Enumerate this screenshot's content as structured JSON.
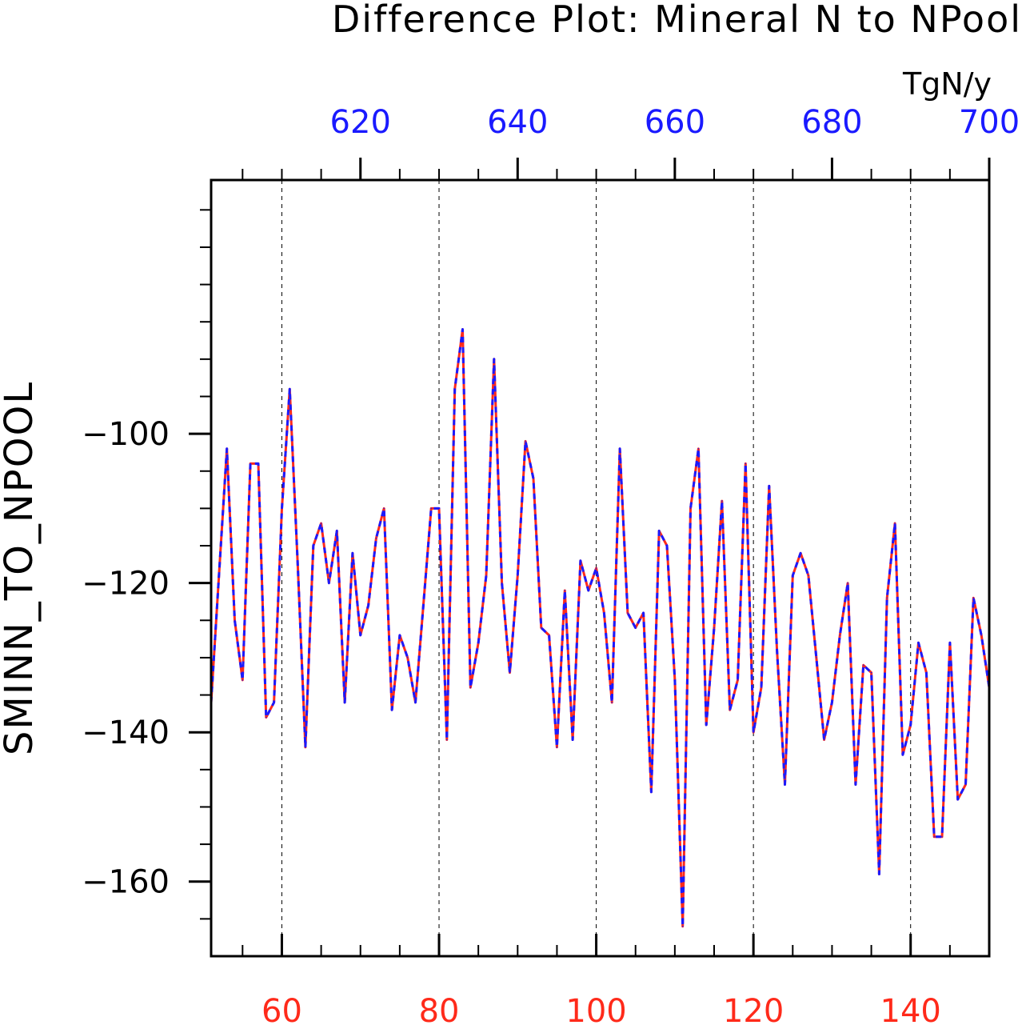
{
  "colors": {
    "primary_series": "#ff2a1a",
    "secondary_series": "#1a1aff",
    "bottom_axis_text": "#ff2a1a",
    "top_axis_text": "#1a1aff",
    "frame": "#000000"
  },
  "chart_data": {
    "type": "line",
    "title": "Difference Plot: Mineral N to NPool",
    "units": "TgN/y",
    "ylabel": "SMINN_TO_NPOOL",
    "xlabel_bottom": "",
    "xlabel_top": "",
    "ylim": [
      -170,
      -66
    ],
    "xlim_bottom": [
      51,
      150
    ],
    "xlim_top": [
      601,
      700
    ],
    "xticks_bottom": [
      60,
      80,
      100,
      120,
      140
    ],
    "xticks_top": [
      620,
      640,
      660,
      680,
      700
    ],
    "yticks": [
      -160,
      -140,
      -120,
      -100
    ],
    "grid": "vertical dashed at major bottom ticks",
    "legend": "none",
    "x": [
      51,
      52,
      53,
      54,
      55,
      56,
      57,
      58,
      59,
      60,
      61,
      62,
      63,
      64,
      65,
      66,
      67,
      68,
      69,
      70,
      71,
      72,
      73,
      74,
      75,
      76,
      77,
      78,
      79,
      80,
      81,
      82,
      83,
      84,
      85,
      86,
      87,
      88,
      89,
      90,
      91,
      92,
      93,
      94,
      95,
      96,
      97,
      98,
      99,
      100,
      101,
      102,
      103,
      104,
      105,
      106,
      107,
      108,
      109,
      110,
      111,
      112,
      113,
      114,
      115,
      116,
      117,
      118,
      119,
      120,
      121,
      122,
      123,
      124,
      125,
      126,
      127,
      128,
      129,
      130,
      131,
      132,
      133,
      134,
      135,
      136,
      137,
      138,
      139,
      140,
      141,
      142,
      143,
      144,
      145,
      146,
      147,
      148,
      149,
      150
    ],
    "series": [
      {
        "values": [
          -136,
          -119,
          -102,
          -125,
          -133,
          -104,
          -104,
          -138,
          -136,
          -110,
          -94,
          -117,
          -142,
          -115,
          -112,
          -120,
          -113,
          -136,
          -116,
          -127,
          -123,
          -114,
          -110,
          -137,
          -127,
          -130,
          -136,
          -123,
          -110,
          -110,
          -141,
          -94,
          -86,
          -134,
          -128,
          -119,
          -90,
          -120,
          -132,
          -119,
          -101,
          -106,
          -126,
          -127,
          -142,
          -121,
          -141,
          -117,
          -121,
          -118,
          -124,
          -136,
          -102,
          -124,
          -126,
          -124,
          -148,
          -113,
          -115,
          -133,
          -166,
          -110,
          -102,
          -139,
          -126,
          -109,
          -137,
          -133,
          -104,
          -140,
          -134,
          -107,
          -129,
          -147,
          -119,
          -116,
          -119,
          -130,
          -141,
          -136,
          -127,
          -120,
          -147,
          -131,
          -132,
          -159,
          -122,
          -112,
          -143,
          -139,
          -128,
          -132,
          -154,
          -154,
          -128,
          -149,
          -147,
          -122,
          -127,
          -134
        ]
      }
    ]
  }
}
